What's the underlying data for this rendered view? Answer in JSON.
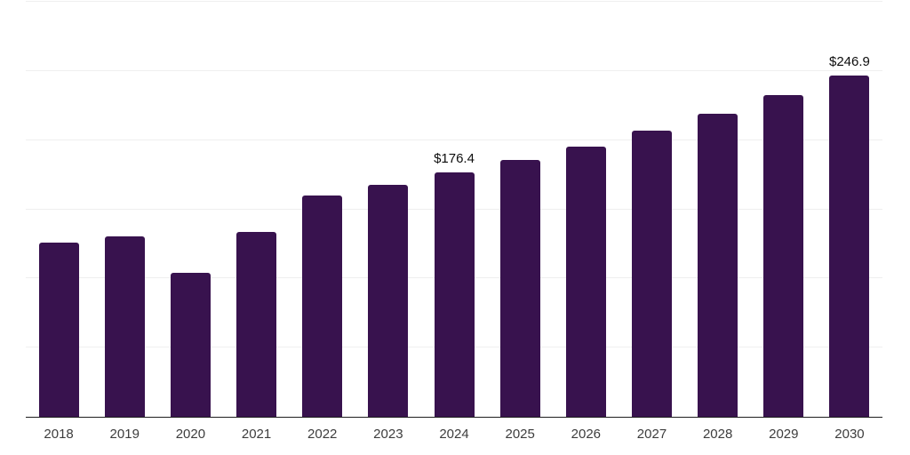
{
  "chart_data": {
    "type": "bar",
    "title": "",
    "xlabel": "",
    "ylabel": "",
    "categories": [
      "2018",
      "2019",
      "2020",
      "2021",
      "2022",
      "2023",
      "2024",
      "2025",
      "2026",
      "2027",
      "2028",
      "2029",
      "2030"
    ],
    "values": [
      125.6,
      130.5,
      104.2,
      133.7,
      159.8,
      167.9,
      176.4,
      185.6,
      195.4,
      207.0,
      219.3,
      232.3,
      246.9
    ],
    "data_labels": {
      "2024": "$176.4",
      "2030": "$246.9"
    },
    "ylim": [
      0,
      300
    ],
    "grid_step": 50,
    "grid": true,
    "legend": false,
    "colors": {
      "bar": "#38124E",
      "gridline": "#efefef",
      "axis_line": "#1f1f1f",
      "tick_label": "#3d3d3d",
      "data_label": "#0d0d0d",
      "background": "#ffffff"
    }
  }
}
